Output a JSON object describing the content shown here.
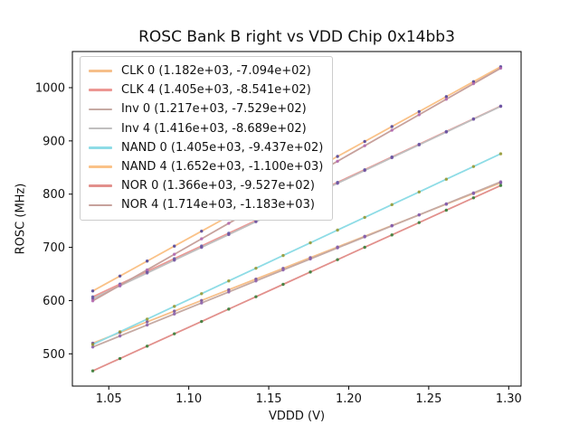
{
  "figure": {
    "background": "#ffffff",
    "spine_color": "#000000",
    "text_color": "#111111"
  },
  "chart_data": {
    "type": "line",
    "title": "ROSC Bank B right vs VDD Chip 0x14bb3",
    "xlabel": "VDDD (V)",
    "ylabel": "ROSC (MHz)",
    "xlim": [
      1.02725,
      1.30775
    ],
    "ylim": [
      439.4,
      1067.9
    ],
    "xticks": [
      1.05,
      1.1,
      1.15,
      1.2,
      1.25,
      1.3
    ],
    "xtick_labels": [
      "1.05",
      "1.10",
      "1.15",
      "1.20",
      "1.25",
      "1.30"
    ],
    "yticks": [
      500,
      600,
      700,
      800,
      900,
      1000
    ],
    "ytick_labels": [
      "500",
      "600",
      "700",
      "800",
      "900",
      "1000"
    ],
    "grid": false,
    "legend_position": "upper left",
    "x_start": 1.04,
    "x_stop": 1.295,
    "n_points": 16,
    "series": [
      {
        "name": "CLK 0",
        "label": "CLK 0 (1.182e+03, -7.094e+02)",
        "slope": 1182,
        "intercept": -709.4,
        "line_color": "#f6bf8a",
        "marker_color": "#7050a0"
      },
      {
        "name": "CLK 4",
        "label": "CLK 4 (1.405e+03, -8.541e+02)",
        "slope": 1405,
        "intercept": -854.1,
        "line_color": "#ec9793",
        "marker_color": "#5a5aa8"
      },
      {
        "name": "Inv 0",
        "label": "Inv 0 (1.217e+03, -7.529e+02)",
        "slope": 1217,
        "intercept": -752.9,
        "line_color": "#c6aaa3",
        "marker_color": "#8a5fae"
      },
      {
        "name": "Inv 4",
        "label": "Inv 4 (1.416e+03, -8.689e+02)",
        "slope": 1416,
        "intercept": -868.9,
        "line_color": "#c0bfbf",
        "marker_color": "#7050a0"
      },
      {
        "name": "NAND 0",
        "label": "NAND 0 (1.405e+03, -9.437e+02)",
        "slope": 1405,
        "intercept": -943.7,
        "line_color": "#8edce6",
        "marker_color": "#96962a"
      },
      {
        "name": "NAND 4",
        "label": "NAND 4 (1.652e+03, -1.100e+03)",
        "slope": 1652,
        "intercept": -1100.0,
        "line_color": "#fac288",
        "marker_color": "#4a3e99"
      },
      {
        "name": "NOR 0",
        "label": "NOR 0 (1.366e+03, -9.527e+02)",
        "slope": 1366,
        "intercept": -952.7,
        "line_color": "#e2908c",
        "marker_color": "#2f7d33"
      },
      {
        "name": "NOR 4",
        "label": "NOR 4 (1.714e+03, -1.183e+03)",
        "slope": 1714,
        "intercept": -1183.0,
        "line_color": "#c7a19c",
        "marker_color": "#b266b2"
      }
    ]
  }
}
